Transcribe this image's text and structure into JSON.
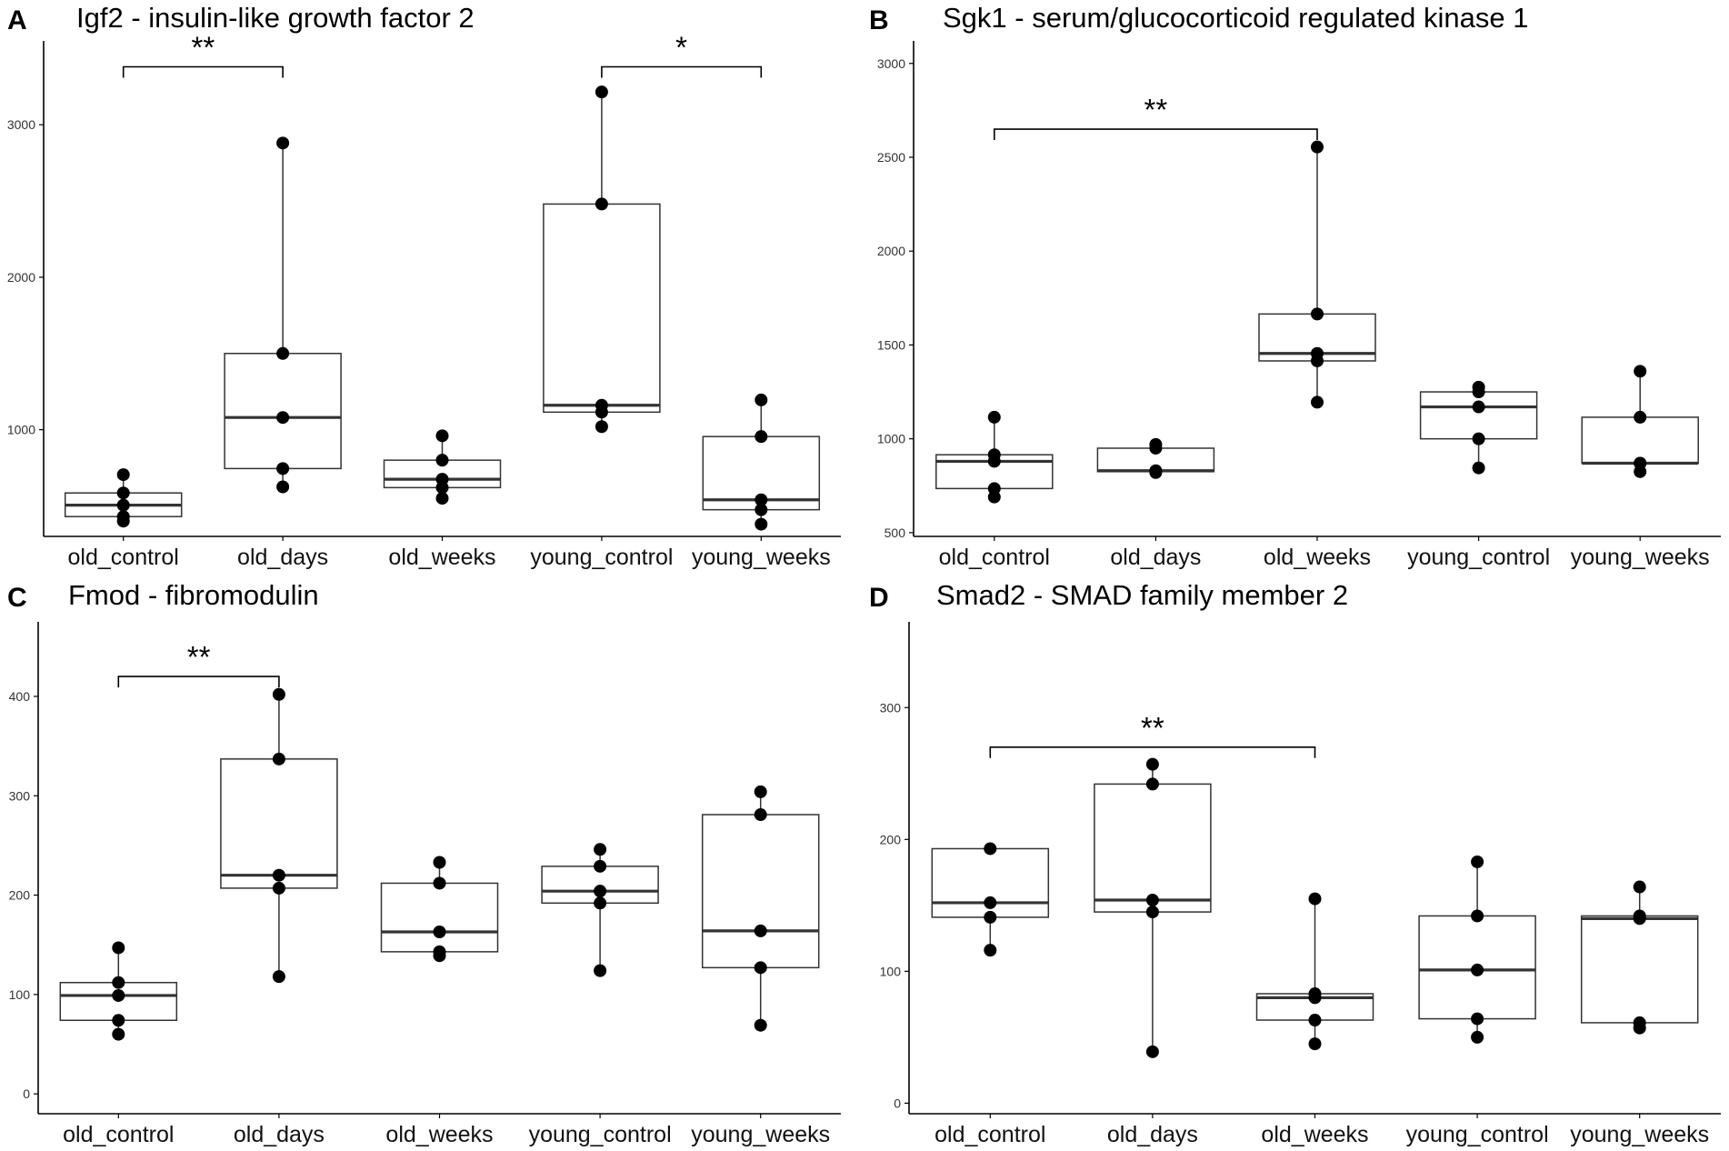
{
  "colors": {
    "box_stroke": "#333333",
    "median": "#333333",
    "point": "#000000",
    "axis": "#000000",
    "background": "#ffffff"
  },
  "chart_data": [
    {
      "type": "box",
      "panel": "A",
      "title": "Igf2 - insulin-like growth factor 2",
      "xlabel": "",
      "ylabel": "",
      "ylim": [
        300,
        3550
      ],
      "yticks": [
        1000,
        2000,
        3000
      ],
      "ytick_labels": [
        "1000",
        "2000",
        "3000"
      ],
      "categories": [
        "old_control",
        "old_days",
        "old_weeks",
        "young_control",
        "young_weeks"
      ],
      "boxes": [
        {
          "q1": 430,
          "median": 505,
          "q3": 585,
          "whisker_low": 400,
          "whisker_high": 705
        },
        {
          "q1": 745,
          "median": 1080,
          "q3": 1500,
          "whisker_low": 625,
          "whisker_high": 2880
        },
        {
          "q1": 620,
          "median": 675,
          "q3": 800,
          "whisker_low": 550,
          "whisker_high": 960
        },
        {
          "q1": 1115,
          "median": 1160,
          "q3": 2480,
          "whisker_low": 1020,
          "whisker_high": 3215
        },
        {
          "q1": 475,
          "median": 540,
          "q3": 955,
          "whisker_low": 380,
          "whisker_high": 1195
        }
      ],
      "points": [
        [
          705,
          585,
          505,
          430,
          400
        ],
        [
          2880,
          1500,
          1080,
          745,
          625
        ],
        [
          960,
          800,
          675,
          620,
          550
        ],
        [
          3215,
          2480,
          1160,
          1115,
          1020
        ],
        [
          1195,
          955,
          540,
          475,
          380
        ]
      ],
      "significance": [
        {
          "from": 0,
          "to": 1,
          "label": "**",
          "level": 3380
        },
        {
          "from": 3,
          "to": 4,
          "label": "*",
          "level": 3380
        }
      ]
    },
    {
      "type": "box",
      "panel": "B",
      "title": "Sgk1 - serum/glucocorticoid regulated kinase 1",
      "xlabel": "",
      "ylabel": "",
      "ylim": [
        480,
        3120
      ],
      "yticks": [
        500,
        1000,
        1500,
        2000,
        2500,
        3000
      ],
      "ytick_labels": [
        "500",
        "1000",
        "1500",
        "2000",
        "2500",
        "3000"
      ],
      "categories": [
        "old_control",
        "old_days",
        "old_weeks",
        "young_control",
        "young_weeks"
      ],
      "boxes": [
        {
          "q1": 735,
          "median": 880,
          "q3": 915,
          "whisker_low": 690,
          "whisker_high": 1115
        },
        {
          "q1": 825,
          "median": 830,
          "q3": 950,
          "whisker_low": 820,
          "whisker_high": 970
        },
        {
          "q1": 1415,
          "median": 1455,
          "q3": 1665,
          "whisker_low": 1195,
          "whisker_high": 2555
        },
        {
          "q1": 1000,
          "median": 1170,
          "q3": 1250,
          "whisker_low": 845,
          "whisker_high": 1275
        },
        {
          "q1": 870,
          "median": 870,
          "q3": 1115,
          "whisker_low": 825,
          "whisker_high": 1360
        }
      ],
      "points": [
        [
          1115,
          915,
          880,
          735,
          690
        ],
        [
          970,
          950,
          830,
          825,
          820
        ],
        [
          2555,
          1665,
          1455,
          1415,
          1195
        ],
        [
          1275,
          1250,
          1170,
          1000,
          845
        ],
        [
          1360,
          1115,
          870,
          870,
          825
        ]
      ],
      "significance": [
        {
          "from": 0,
          "to": 2,
          "label": "**",
          "level": 2650
        }
      ]
    },
    {
      "type": "box",
      "panel": "C",
      "title": "Fmod - fibromodulin",
      "xlabel": "",
      "ylabel": "",
      "ylim": [
        -20,
        475
      ],
      "yticks": [
        0,
        100,
        200,
        300,
        400
      ],
      "ytick_labels": [
        "0",
        "100",
        "200",
        "300",
        "400"
      ],
      "categories": [
        "old_control",
        "old_days",
        "old_weeks",
        "young_control",
        "young_weeks"
      ],
      "boxes": [
        {
          "q1": 74,
          "median": 99,
          "q3": 112,
          "whisker_low": 60,
          "whisker_high": 147
        },
        {
          "q1": 207,
          "median": 220,
          "q3": 337,
          "whisker_low": 118,
          "whisker_high": 402
        },
        {
          "q1": 143,
          "median": 163,
          "q3": 212,
          "whisker_low": 139,
          "whisker_high": 233
        },
        {
          "q1": 192,
          "median": 204,
          "q3": 229,
          "whisker_low": 124,
          "whisker_high": 246
        },
        {
          "q1": 127,
          "median": 164,
          "q3": 281,
          "whisker_low": 69,
          "whisker_high": 304
        }
      ],
      "points": [
        [
          147,
          112,
          99,
          74,
          60
        ],
        [
          402,
          337,
          220,
          207,
          118
        ],
        [
          233,
          212,
          163,
          143,
          139
        ],
        [
          246,
          229,
          204,
          192,
          124
        ],
        [
          304,
          281,
          164,
          127,
          69
        ]
      ],
      "significance": [
        {
          "from": 0,
          "to": 1,
          "label": "**",
          "level": 420
        }
      ]
    },
    {
      "type": "box",
      "panel": "D",
      "title": "Smad2 - SMAD family member 2",
      "xlabel": "",
      "ylabel": "",
      "ylim": [
        -8,
        365
      ],
      "yticks": [
        0,
        100,
        200,
        300
      ],
      "ytick_labels": [
        "0",
        "100",
        "200",
        "300"
      ],
      "categories": [
        "old_control",
        "old_days",
        "old_weeks",
        "young_control",
        "young_weeks"
      ],
      "boxes": [
        {
          "q1": 141,
          "median": 152,
          "q3": 193,
          "whisker_low": 116,
          "whisker_high": 193
        },
        {
          "q1": 145,
          "median": 154,
          "q3": 242,
          "whisker_low": 39,
          "whisker_high": 257
        },
        {
          "q1": 63,
          "median": 80,
          "q3": 83,
          "whisker_low": 45,
          "whisker_high": 155
        },
        {
          "q1": 64,
          "median": 101,
          "q3": 142,
          "whisker_low": 50,
          "whisker_high": 183
        },
        {
          "q1": 61,
          "median": 140,
          "q3": 142,
          "whisker_low": 57,
          "whisker_high": 164
        }
      ],
      "points": [
        [
          193,
          152,
          141,
          116
        ],
        [
          257,
          242,
          154,
          145,
          39
        ],
        [
          155,
          83,
          80,
          63,
          45
        ],
        [
          183,
          142,
          101,
          64,
          50
        ],
        [
          164,
          142,
          140,
          61,
          57
        ]
      ],
      "significance": [
        {
          "from": 0,
          "to": 2,
          "label": "**",
          "level": 270
        }
      ]
    }
  ]
}
